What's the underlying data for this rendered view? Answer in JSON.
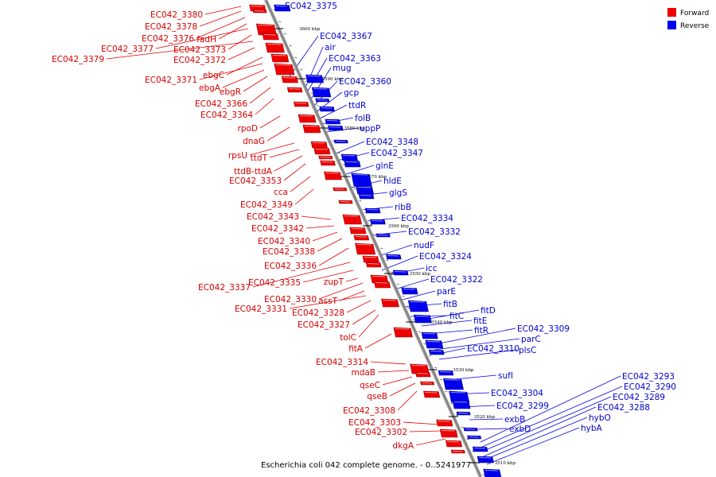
{
  "legend": {
    "forward": {
      "label": "Forward",
      "color": "#ee0000"
    },
    "reverse": {
      "label": "Reverse",
      "color": "#0000ee"
    }
  },
  "caption": "Escherichia coli 042 complete genome. - 0..5241977",
  "axis_ticks": [
    "3510 kbp",
    "3520 kbp",
    "3530 kbp",
    "3540 kbp",
    "3550 kbp",
    "3560 kbp",
    "3570 kbp",
    "3580 kbp",
    "3590 kbp",
    "3600 kbp"
  ],
  "forward_labels": [
    "EC042_3380",
    "EC042_3378",
    "EC042_3376",
    "fadH",
    "EC042_3377",
    "EC042_3373",
    "EC042_3379",
    "EC042_3372",
    "ebgC",
    "EC042_3371",
    "ebgA",
    "ebgR",
    "EC042_3366",
    "EC042_3364",
    "rpoD",
    "dnaG",
    "rpsU",
    "ttdT",
    "ttdB-ttdA",
    "EC042_3353",
    "cca",
    "EC042_3349",
    "EC042_3343",
    "EC042_3342",
    "EC042_3340",
    "EC042_3338",
    "EC042_3336",
    "EC042_3337",
    "EC042_3335",
    "zupT",
    "EC042_3330",
    "assT",
    "EC042_3331",
    "EC042_3328",
    "EC042_3327",
    "tolC",
    "fitA",
    "EC042_3314",
    "mdaB",
    "qseC",
    "qseB",
    "EC042_3308",
    "EC042_3303",
    "EC042_3302",
    "dkgA"
  ],
  "reverse_labels": [
    "EC042_3375",
    "EC042_3367",
    "air",
    "EC042_3363",
    "mug",
    "EC042_3360",
    "gcp",
    "ttdR",
    "folB",
    "uppP",
    "EC042_3348",
    "EC042_3347",
    "glnE",
    "hldE",
    "glgS",
    "ribB",
    "EC042_3334",
    "EC042_3332",
    "nudF",
    "EC042_3324",
    "icc",
    "EC042_3322",
    "parE",
    "fitB",
    "fitC",
    "fitD",
    "fitE",
    "fitR",
    "EC042_3309",
    "parC",
    "EC042_3310",
    "plsC",
    "sufI",
    "EC042_3304",
    "EC042_3299",
    "exbB",
    "exbD",
    "EC042_3293",
    "EC042_3290",
    "EC042_3289",
    "EC042_3288",
    "hybO",
    "hybA"
  ]
}
